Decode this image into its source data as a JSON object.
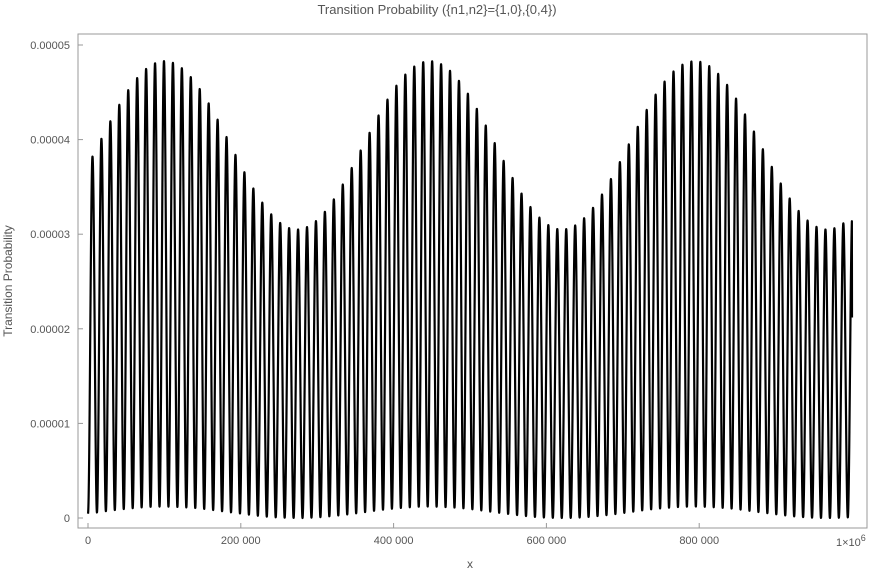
{
  "chart_data": {
    "type": "line",
    "title": "Transition Probability ({n1,n2}={1,0},{0,4})",
    "xlabel": "x",
    "ylabel": "Transition Probability",
    "xlim": [
      0,
      1000000
    ],
    "ylim": [
      0,
      5e-05
    ],
    "x_ticks": [
      {
        "value": 0,
        "label": "0"
      },
      {
        "value": 200000,
        "label": "200 000"
      },
      {
        "value": 400000,
        "label": "400 000"
      },
      {
        "value": 600000,
        "label": "600 000"
      },
      {
        "value": 800000,
        "label": "800 000"
      }
    ],
    "x_end_label": "1×10",
    "x_end_exponent": "6",
    "y_ticks": [
      {
        "value": 0,
        "label": "0"
      },
      {
        "value": 1e-05,
        "label": "0.00001"
      },
      {
        "value": 2e-05,
        "label": "0.00002"
      },
      {
        "value": 3e-05,
        "label": "0.00003"
      },
      {
        "value": 4e-05,
        "label": "0.00004"
      },
      {
        "value": 5e-05,
        "label": "0.00005"
      }
    ],
    "series": [
      {
        "name": "Transition Probability",
        "color": "#000000",
        "model": {
          "oscillation_period": 11700,
          "envelope_period": 347000,
          "envelope_max": 4.83e-05,
          "envelope_min": 3.05e-05,
          "envelope_peak_x": 100000,
          "baseline_max": 1.2e-06,
          "end_x": 1000000,
          "end_y": 2.12e-05
        }
      }
    ]
  }
}
